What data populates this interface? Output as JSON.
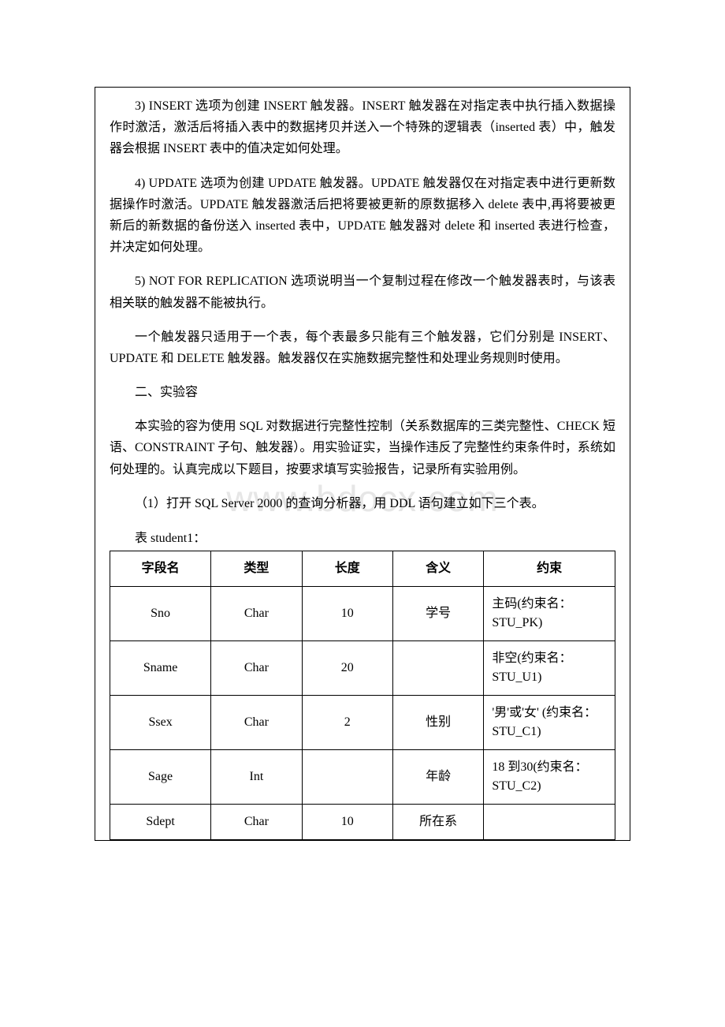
{
  "watermark": "www.bdocx.com",
  "paragraphs": {
    "p3": "3) INSERT 选项为创建 INSERT 触发器。INSERT 触发器在对指定表中执行插入数据操作时激活，激活后将插入表中的数据拷贝并送入一个特殊的逻辑表（inserted 表）中，触发器会根据 INSERT 表中的值决定如何处理。",
    "p4": "4) UPDATE 选项为创建 UPDATE 触发器。UPDATE 触发器仅在对指定表中进行更新数据操作时激活。UPDATE 触发器激活后把将要被更新的原数据移入 delete 表中,再将要被更新后的新数据的备份送入 inserted 表中，UPDATE 触发器对 delete 和 inserted 表进行检查，并决定如何处理。",
    "p5": "5) NOT FOR REPLICATION 选项说明当一个复制过程在修改一个触发器表时，与该表相关联的触发器不能被执行。",
    "p6": "一个触发器只适用于一个表，每个表最多只能有三个触发器，它们分别是 INSERT、UPDATE 和 DELETE 触发器。触发器仅在实施数据完整性和处理业务规则时使用。",
    "h2": "二、实验容",
    "p7": "本实验的容为使用 SQL 对数据进行完整性控制（关系数据库的三类完整性、CHECK 短语、CONSTRAINT 子句、触发器）。用实验证实，当操作违反了完整性约束条件时，系统如何处理的。认真完成以下题目，按要求填写实验报告，记录所有实验用例。",
    "p8": "（1）打开 SQL Server 2000 的查询分析器，用 DDL 语句建立如下三个表。",
    "caption": "表 student1："
  },
  "table": {
    "headers": [
      "字段名",
      "类型",
      "长度",
      "含义",
      "约束"
    ],
    "col_widths": [
      "20%",
      "18%",
      "18%",
      "18%",
      "26%"
    ],
    "rows": [
      {
        "cells": [
          "Sno",
          "Char",
          "10",
          "学号",
          "主码(约束名：STU_PK)"
        ]
      },
      {
        "cells": [
          "Sname",
          "Char",
          "20",
          "",
          "非空(约束名：STU_U1)"
        ]
      },
      {
        "cells": [
          "Ssex",
          "Char",
          "2",
          "性别",
          "'男'或'女' (约束名：STU_C1)"
        ]
      },
      {
        "cells": [
          "Sage",
          "Int",
          "",
          "年龄",
          "18 到30(约束名：STU_C2)"
        ]
      },
      {
        "cells": [
          "Sdept",
          "Char",
          "10",
          "所在系",
          ""
        ]
      }
    ]
  }
}
